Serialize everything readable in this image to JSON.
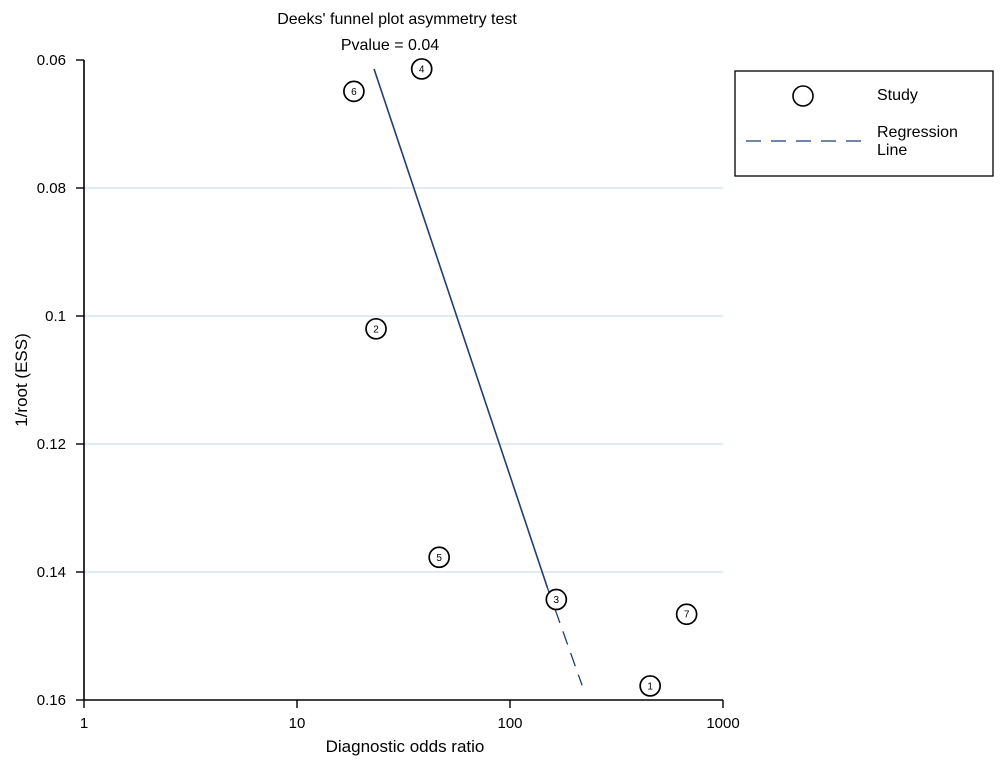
{
  "chart_data": {
    "type": "scatter",
    "title": "Deeks' funnel plot asymmetry test",
    "subtitle": "Pvalue = 0.04",
    "xlabel": "Diagnostic odds ratio",
    "ylabel": "1/root (ESS)",
    "x_scale": "log",
    "xlim": [
      1,
      1000
    ],
    "ylim": [
      0.06,
      0.16
    ],
    "y_inverted": true,
    "x_ticks": [
      1,
      10,
      100,
      1000
    ],
    "x_tick_labels": [
      "1",
      "10",
      "100",
      "1000"
    ],
    "y_ticks": [
      0.06,
      0.08,
      0.1,
      0.12,
      0.14,
      0.16
    ],
    "y_tick_labels": [
      "0.06",
      "0.08",
      "0.1",
      "0.12",
      "0.14",
      "0.16"
    ],
    "grid": "horizontal",
    "points": [
      {
        "label": "1",
        "x": 455,
        "y": 0.1578
      },
      {
        "label": "2",
        "x": 23.5,
        "y": 0.102
      },
      {
        "label": "3",
        "x": 165,
        "y": 0.1443
      },
      {
        "label": "4",
        "x": 38.5,
        "y": 0.0614
      },
      {
        "label": "5",
        "x": 46.5,
        "y": 0.1377
      },
      {
        "label": "6",
        "x": 18.5,
        "y": 0.0649
      },
      {
        "label": "7",
        "x": 675,
        "y": 0.1466
      }
    ],
    "regression_line": {
      "solid": [
        {
          "x": 23,
          "y": 0.0614
        },
        {
          "x": 150,
          "y": 0.1425
        }
      ],
      "dashed": [
        {
          "x": 150,
          "y": 0.1425
        },
        {
          "x": 218,
          "y": 0.1577
        }
      ]
    },
    "legend": {
      "placement": "right",
      "entries": [
        {
          "label": "Study",
          "marker": "circle"
        },
        {
          "label": "Regression Line",
          "marker": "dashed-line"
        }
      ]
    },
    "colors": {
      "grid": "#d6e6ea",
      "regression": "#1f3f6f",
      "axis": "#000000"
    }
  }
}
